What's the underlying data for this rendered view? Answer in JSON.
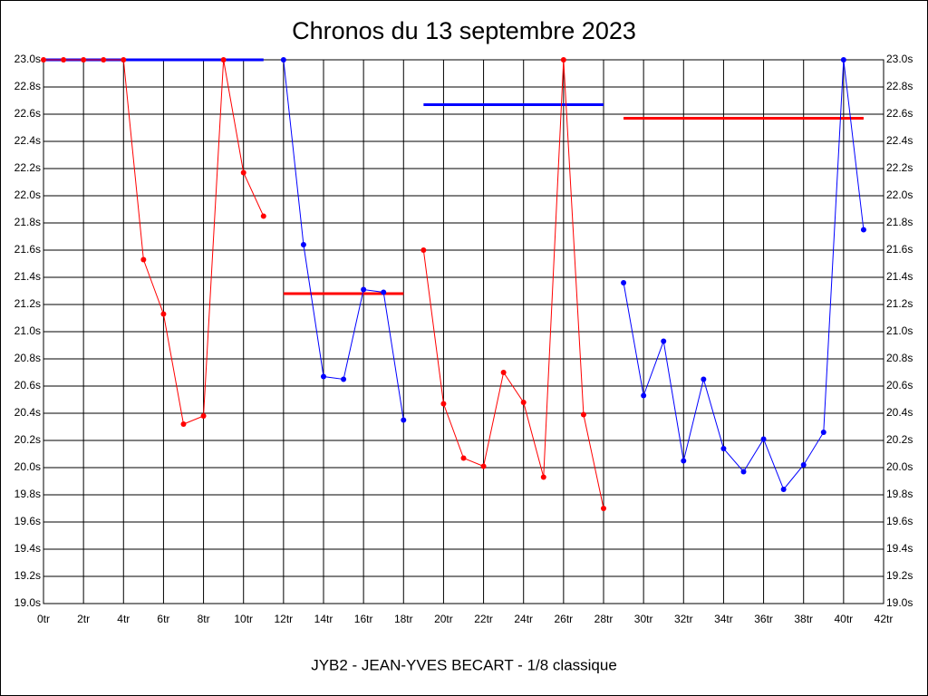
{
  "chart_data": {
    "type": "line",
    "title": "Chronos du 13 septembre 2023",
    "subtitle": "JYB2 - JEAN-YVES BECART - 1/8 classique",
    "xlim": [
      0,
      42
    ],
    "ylim": [
      19.0,
      23.0
    ],
    "grid": true,
    "xticks": [
      {
        "value": 0,
        "label": "0tr"
      },
      {
        "value": 2,
        "label": "2tr"
      },
      {
        "value": 4,
        "label": "4tr"
      },
      {
        "value": 6,
        "label": "6tr"
      },
      {
        "value": 8,
        "label": "8tr"
      },
      {
        "value": 10,
        "label": "10tr"
      },
      {
        "value": 12,
        "label": "12tr"
      },
      {
        "value": 14,
        "label": "14tr"
      },
      {
        "value": 16,
        "label": "16tr"
      },
      {
        "value": 18,
        "label": "18tr"
      },
      {
        "value": 20,
        "label": "20tr"
      },
      {
        "value": 22,
        "label": "22tr"
      },
      {
        "value": 24,
        "label": "24tr"
      },
      {
        "value": 26,
        "label": "26tr"
      },
      {
        "value": 28,
        "label": "28tr"
      },
      {
        "value": 30,
        "label": "30tr"
      },
      {
        "value": 32,
        "label": "32tr"
      },
      {
        "value": 34,
        "label": "34tr"
      },
      {
        "value": 36,
        "label": "36tr"
      },
      {
        "value": 38,
        "label": "38tr"
      },
      {
        "value": 40,
        "label": "40tr"
      },
      {
        "value": 42,
        "label": "42tr"
      }
    ],
    "yticks": [
      {
        "value": 19.0,
        "label": "19.0s"
      },
      {
        "value": 19.2,
        "label": "19.2s"
      },
      {
        "value": 19.4,
        "label": "19.4s"
      },
      {
        "value": 19.6,
        "label": "19.6s"
      },
      {
        "value": 19.8,
        "label": "19.8s"
      },
      {
        "value": 20.0,
        "label": "20.0s"
      },
      {
        "value": 20.2,
        "label": "20.2s"
      },
      {
        "value": 20.4,
        "label": "20.4s"
      },
      {
        "value": 20.6,
        "label": "20.6s"
      },
      {
        "value": 20.8,
        "label": "20.8s"
      },
      {
        "value": 21.0,
        "label": "21.0s"
      },
      {
        "value": 21.2,
        "label": "21.2s"
      },
      {
        "value": 21.4,
        "label": "21.4s"
      },
      {
        "value": 21.6,
        "label": "21.6s"
      },
      {
        "value": 21.8,
        "label": "21.8s"
      },
      {
        "value": 22.0,
        "label": "22.0s"
      },
      {
        "value": 22.2,
        "label": "22.2s"
      },
      {
        "value": 22.4,
        "label": "22.4s"
      },
      {
        "value": 22.6,
        "label": "22.6s"
      },
      {
        "value": 22.8,
        "label": "22.8s"
      },
      {
        "value": 23.0,
        "label": "23.0s"
      }
    ],
    "series": [
      {
        "color": "#ff0000",
        "average": 23.0,
        "average_color": "#0000ff",
        "x": [
          0,
          1,
          2,
          3,
          4,
          5,
          6,
          7,
          8,
          9,
          10,
          11
        ],
        "values": [
          23.0,
          23.0,
          23.0,
          23.0,
          23.0,
          21.53,
          21.13,
          20.32,
          20.38,
          23.0,
          22.17,
          21.85
        ]
      },
      {
        "color": "#0000ff",
        "average": 21.28,
        "average_color": "#ff0000",
        "x": [
          12,
          13,
          14,
          15,
          16,
          17,
          18
        ],
        "values": [
          23.0,
          21.64,
          20.67,
          20.65,
          21.31,
          21.29,
          20.35
        ]
      },
      {
        "color": "#ff0000",
        "average": 22.67,
        "average_color": "#0000ff",
        "x": [
          19,
          20,
          21,
          22,
          23,
          24,
          25,
          26,
          27,
          28
        ],
        "values": [
          21.6,
          20.47,
          20.07,
          20.01,
          20.7,
          20.48,
          19.93,
          23.0,
          20.39,
          19.7
        ]
      },
      {
        "color": "#0000ff",
        "average": 22.57,
        "average_color": "#ff0000",
        "x": [
          29,
          30,
          31,
          32,
          33,
          34,
          35,
          36,
          37,
          38,
          39,
          40,
          41
        ],
        "values": [
          21.36,
          20.53,
          20.93,
          20.05,
          20.65,
          20.14,
          19.97,
          20.21,
          19.84,
          20.02,
          20.26,
          23.0,
          21.75
        ]
      }
    ]
  }
}
